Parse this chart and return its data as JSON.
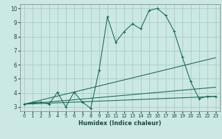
{
  "xlabel": "Humidex (Indice chaleur)",
  "bg_color": "#cce8e4",
  "grid_color": "#aacfca",
  "line_color": "#1a6b5a",
  "xlim": [
    -0.5,
    23.5
  ],
  "ylim": [
    2.7,
    10.3
  ],
  "xticks": [
    0,
    1,
    2,
    3,
    4,
    5,
    6,
    7,
    8,
    9,
    10,
    11,
    12,
    13,
    14,
    15,
    16,
    17,
    18,
    19,
    20,
    21,
    22,
    23
  ],
  "yticks": [
    3,
    4,
    5,
    6,
    7,
    8,
    9,
    10
  ],
  "lines": [
    {
      "x": [
        0,
        1,
        2,
        3,
        4,
        5,
        6,
        7,
        8,
        9,
        10,
        11,
        12,
        13,
        14,
        15,
        16,
        17,
        18,
        19,
        20,
        21,
        22,
        23
      ],
      "y": [
        3.2,
        3.3,
        3.35,
        3.2,
        4.05,
        3.0,
        4.05,
        3.35,
        2.9,
        5.6,
        9.4,
        7.6,
        8.35,
        8.9,
        8.55,
        9.85,
        10.0,
        9.5,
        8.4,
        6.55,
        4.8,
        3.6,
        3.75,
        3.75
      ],
      "marker": "+"
    },
    {
      "x": [
        0,
        23
      ],
      "y": [
        3.2,
        6.5
      ],
      "marker": null
    },
    {
      "x": [
        0,
        23
      ],
      "y": [
        3.2,
        4.4
      ],
      "marker": null
    },
    {
      "x": [
        0,
        23
      ],
      "y": [
        3.2,
        3.75
      ],
      "marker": null
    }
  ]
}
